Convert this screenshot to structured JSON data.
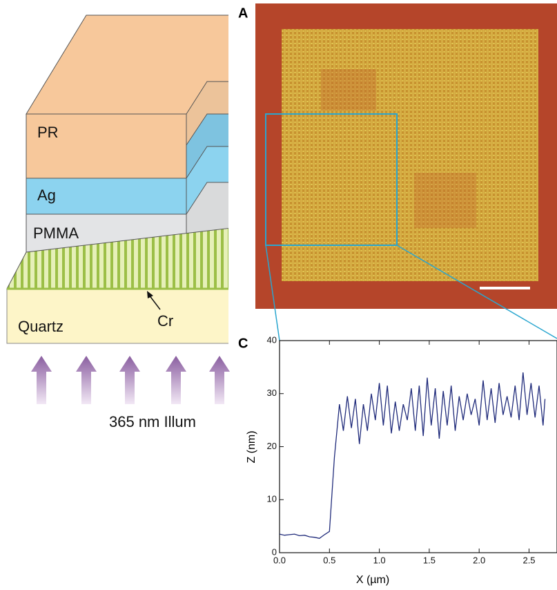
{
  "diagram": {
    "layers": [
      "PR",
      "Ag",
      "PMMA",
      "Quartz"
    ],
    "pointer_label": "Cr",
    "illumination_label": "365 nm Illum"
  },
  "panel_a": {
    "label": "A"
  },
  "chart_data": {
    "type": "line",
    "panel_label": "C",
    "x_label": "X (µm)",
    "y_label": "Z (nm)",
    "color": "#1f2a7a",
    "xlim": [
      0,
      2.78
    ],
    "ylim": [
      0,
      40
    ],
    "xticks": [
      {
        "value": 0,
        "label": "0.0"
      },
      {
        "value": 0.5,
        "label": "0.5"
      },
      {
        "value": 1,
        "label": "1.0"
      },
      {
        "value": 1.5,
        "label": "1.5"
      },
      {
        "value": 2,
        "label": "2.0"
      },
      {
        "value": 2.5,
        "label": "2.5"
      }
    ],
    "yticks": [
      0,
      10,
      20,
      30,
      40
    ],
    "x": [
      0,
      0.05,
      0.1,
      0.15,
      0.2,
      0.25,
      0.3,
      0.35,
      0.4,
      0.45,
      0.5,
      0.55,
      0.6,
      0.64,
      0.68,
      0.72,
      0.76,
      0.8,
      0.84,
      0.88,
      0.92,
      0.96,
      1.0,
      1.04,
      1.08,
      1.12,
      1.16,
      1.2,
      1.24,
      1.28,
      1.32,
      1.36,
      1.4,
      1.44,
      1.48,
      1.52,
      1.56,
      1.6,
      1.64,
      1.68,
      1.72,
      1.76,
      1.8,
      1.84,
      1.88,
      1.92,
      1.96,
      2.0,
      2.04,
      2.08,
      2.12,
      2.16,
      2.2,
      2.24,
      2.28,
      2.32,
      2.36,
      2.4,
      2.44,
      2.48,
      2.52,
      2.56,
      2.6,
      2.64,
      2.66
    ],
    "values": [
      3.5,
      3.3,
      3.4,
      3.5,
      3.2,
      3.3,
      3.0,
      2.9,
      2.7,
      3.4,
      4.0,
      18,
      28,
      23,
      29.5,
      23.5,
      29,
      20.5,
      28,
      23,
      30,
      25,
      32,
      24,
      31.5,
      22.5,
      28.5,
      23,
      28,
      25,
      31,
      23,
      31.5,
      22,
      33,
      24,
      31,
      21.5,
      30.5,
      24,
      31.5,
      23,
      29.5,
      25,
      30,
      26,
      29,
      24,
      32.5,
      25,
      31,
      24.5,
      32,
      26,
      29.5,
      25.5,
      31.5,
      25,
      34,
      26,
      32,
      25.5,
      31.5,
      24,
      29
    ]
  }
}
